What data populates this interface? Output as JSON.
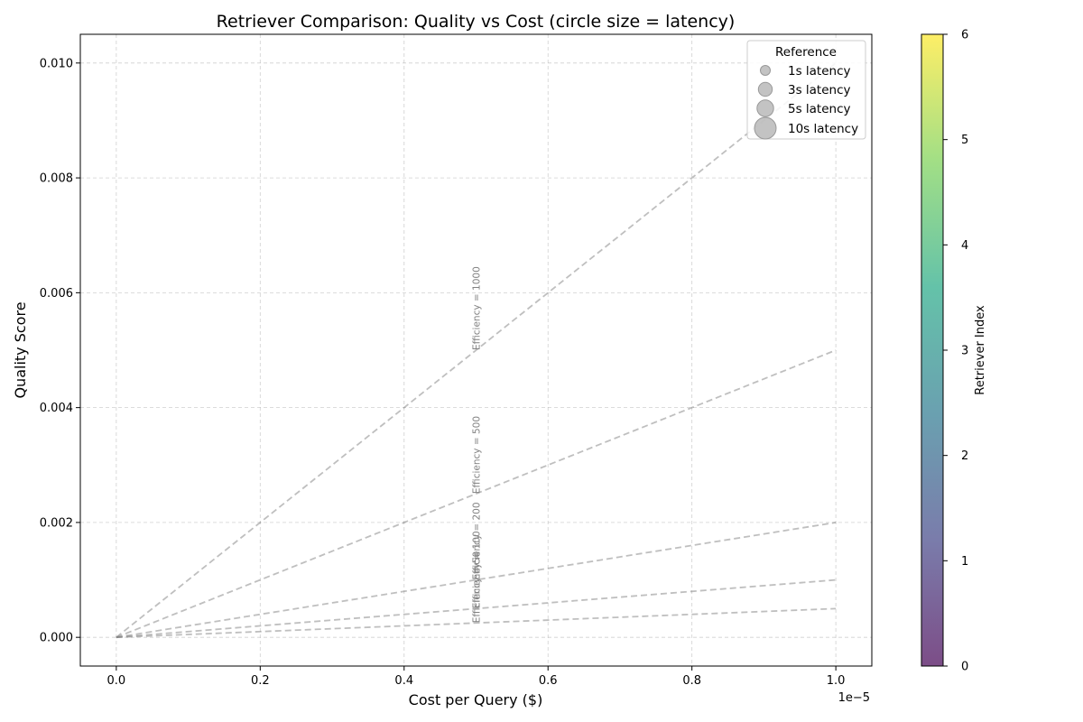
{
  "chart_data": {
    "type": "scatter",
    "title": "Retriever Comparison: Quality vs Cost (circle size = latency)",
    "xlabel": "Cost per Query ($)",
    "ylabel": "Quality Score",
    "x_offset_text": "1e−5",
    "xlim": [
      -0.05,
      1.05
    ],
    "ylim": [
      -0.0005,
      0.0105
    ],
    "x_tick_values": [
      0.0,
      0.2,
      0.4,
      0.6,
      0.8,
      1.0
    ],
    "x_tick_labels": [
      "0.0",
      "0.2",
      "0.4",
      "0.6",
      "0.8",
      "1.0"
    ],
    "y_tick_values": [
      0.0,
      0.002,
      0.004,
      0.006,
      0.008,
      0.01
    ],
    "y_tick_labels": [
      "0.000",
      "0.002",
      "0.004",
      "0.006",
      "0.008",
      "0.010"
    ],
    "grid": true,
    "efficiency_lines": [
      {
        "label": "Efficiency = 1000",
        "x": [
          0,
          1.0
        ],
        "y": [
          0,
          0.01
        ]
      },
      {
        "label": "Efficiency = 500",
        "x": [
          0,
          1.0
        ],
        "y": [
          0,
          0.005
        ]
      },
      {
        "label": "Efficiency = 200",
        "x": [
          0,
          1.0
        ],
        "y": [
          0,
          0.002
        ]
      },
      {
        "label": "Efficiency = 100",
        "x": [
          0,
          1.0
        ],
        "y": [
          0,
          0.001
        ]
      },
      {
        "label": "Efficiency = 50",
        "x": [
          0,
          1.0
        ],
        "y": [
          0,
          0.0005
        ]
      }
    ],
    "legend": {
      "title": "Reference",
      "placement": "top-right",
      "entries": [
        {
          "label": "1s latency",
          "latency": 1
        },
        {
          "label": "3s latency",
          "latency": 3
        },
        {
          "label": "5s latency",
          "latency": 5
        },
        {
          "label": "10s latency",
          "latency": 10
        }
      ]
    },
    "colorbar": {
      "label": "Retriever Index",
      "range": [
        0,
        6
      ],
      "tick_values": [
        0,
        1,
        2,
        3,
        4,
        5,
        6
      ],
      "tick_labels": [
        "0",
        "1",
        "2",
        "3",
        "4",
        "5",
        "6"
      ],
      "colormap": "viridis",
      "colors": [
        "#440154",
        "#414487",
        "#2a788e",
        "#22a884",
        "#7ad151",
        "#fde725"
      ]
    },
    "points": []
  }
}
